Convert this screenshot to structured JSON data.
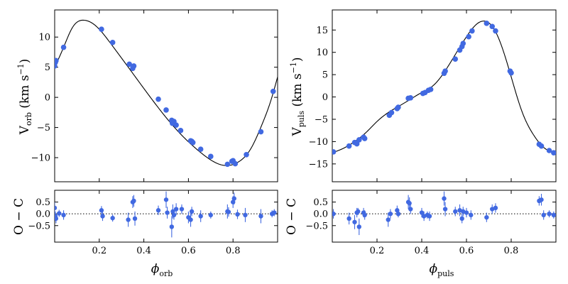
{
  "colors": {
    "points": "#4169E1",
    "model": "#000000"
  },
  "chart_data": [
    {
      "id": "orb_main",
      "type": "scatter",
      "xlim": [
        0,
        1
      ],
      "ylim": [
        -14,
        14.5
      ],
      "xticks": [
        0.2,
        0.4,
        0.6,
        0.8
      ],
      "xtick_labels": [],
      "yticks": [
        -10,
        -5,
        0,
        5,
        10
      ],
      "ytick_labels": [
        "−10",
        "−5",
        "0",
        "5",
        "10"
      ],
      "ylabel_main": "V",
      "ylabel_sub": "orb",
      "ylabel_unit": "(km s",
      "ylabel_exp": "−1",
      "ylabel_close": ")",
      "model_keys": {
        "x": [
          0,
          0.04,
          0.08,
          0.13,
          0.18,
          0.25,
          0.35,
          0.45,
          0.55,
          0.65,
          0.72,
          0.78,
          0.82,
          0.88,
          0.93,
          0.97,
          1.0
        ],
        "y": [
          5,
          8.3,
          11.6,
          12.8,
          12.0,
          9.0,
          4.0,
          -1.0,
          -5.5,
          -9.0,
          -10.8,
          -11.3,
          -10.8,
          -8.5,
          -4.5,
          -0.5,
          3.4
        ]
      },
      "points": {
        "x": [
          0.0,
          0.003,
          0.006,
          0.04,
          0.21,
          0.26,
          0.335,
          0.35,
          0.355,
          0.465,
          0.5,
          0.525,
          0.528,
          0.535,
          0.545,
          0.565,
          0.61,
          0.615,
          0.62,
          0.655,
          0.7,
          0.775,
          0.795,
          0.8,
          0.81,
          0.86,
          0.925,
          0.98
        ],
        "y": [
          5.2,
          5.8,
          6.1,
          8.3,
          11.3,
          9.1,
          5.5,
          4.8,
          5.2,
          -0.3,
          -2.1,
          -3.8,
          -4.3,
          -4.0,
          -4.6,
          -5.5,
          -7.2,
          -7.3,
          -7.5,
          -8.6,
          -9.8,
          -11.1,
          -10.6,
          -10.5,
          -11.0,
          -9.5,
          -5.7,
          1.0
        ]
      }
    },
    {
      "id": "orb_resid",
      "type": "scatter",
      "xlim": [
        0,
        1
      ],
      "ylim": [
        -1.2,
        1.0
      ],
      "xticks": [
        0.2,
        0.4,
        0.6,
        0.8
      ],
      "xtick_labels": [
        "0.2",
        "0.4",
        "0.6",
        "0.8"
      ],
      "yticks": [
        -0.5,
        0.0,
        0.5
      ],
      "ytick_labels": [
        "−0.5",
        "0.0",
        "0.5"
      ],
      "ylabel": "O − C",
      "xlabel_main": "ϕ",
      "xlabel_sub": "orb",
      "points": {
        "x": [
          0.0,
          0.003,
          0.006,
          0.02,
          0.04,
          0.21,
          0.215,
          0.26,
          0.33,
          0.35,
          0.355,
          0.36,
          0.465,
          0.5,
          0.505,
          0.525,
          0.53,
          0.535,
          0.545,
          0.57,
          0.6,
          0.61,
          0.615,
          0.655,
          0.7,
          0.775,
          0.78,
          0.8,
          0.805,
          0.82,
          0.855,
          0.925,
          0.975,
          0.985
        ],
        "y": [
          0.25,
          -0.1,
          -0.2,
          0.02,
          -0.05,
          0.15,
          -0.1,
          -0.18,
          -0.25,
          0.5,
          0.55,
          -0.2,
          0.15,
          0.6,
          0.05,
          -0.55,
          0.1,
          -0.05,
          0.2,
          0.2,
          -0.15,
          -0.25,
          0.1,
          -0.1,
          -0.05,
          0.1,
          0.08,
          0.5,
          0.65,
          -0.02,
          -0.05,
          -0.1,
          0.0,
          0.05
        ],
        "err": [
          0.25,
          0.2,
          0.2,
          0.15,
          0.2,
          0.18,
          0.2,
          0.15,
          0.3,
          0.25,
          0.25,
          0.3,
          0.2,
          0.35,
          0.25,
          0.45,
          0.3,
          0.2,
          0.25,
          0.2,
          0.25,
          0.3,
          0.2,
          0.25,
          0.15,
          0.3,
          0.2,
          0.25,
          0.25,
          0.2,
          0.3,
          0.3,
          0.15,
          0.15
        ]
      }
    },
    {
      "id": "puls_main",
      "type": "scatter",
      "xlim": [
        0,
        1
      ],
      "ylim": [
        -19,
        19.5
      ],
      "xticks": [
        0.2,
        0.4,
        0.6,
        0.8
      ],
      "xtick_labels": [],
      "yticks": [
        -15,
        -10,
        -5,
        0,
        5,
        10,
        15
      ],
      "ytick_labels": [
        "−15",
        "−10",
        "−5",
        "0",
        "5",
        "10",
        "15"
      ],
      "ylabel_main": "V",
      "ylabel_sub": "puls",
      "ylabel_unit": "(km s",
      "ylabel_exp": "−1",
      "ylabel_close": ")",
      "model_keys": {
        "x": [
          0,
          0.05,
          0.1,
          0.15,
          0.2,
          0.25,
          0.3,
          0.35,
          0.4,
          0.45,
          0.5,
          0.55,
          0.6,
          0.65,
          0.68,
          0.72,
          0.76,
          0.8,
          0.85,
          0.9,
          0.95,
          1.0
        ],
        "y": [
          -12.5,
          -11.5,
          -10.0,
          -8.0,
          -5.5,
          -3.5,
          -2.0,
          -0.5,
          1.0,
          2.5,
          5.5,
          9.5,
          13.5,
          16.5,
          17.0,
          15.5,
          11.0,
          4.5,
          -3.5,
          -8.5,
          -11.5,
          -12.5
        ]
      },
      "points": {
        "x": [
          0.005,
          0.075,
          0.1,
          0.11,
          0.12,
          0.14,
          0.145,
          0.255,
          0.265,
          0.29,
          0.295,
          0.34,
          0.35,
          0.405,
          0.415,
          0.43,
          0.44,
          0.5,
          0.505,
          0.55,
          0.57,
          0.58,
          0.585,
          0.61,
          0.625,
          0.69,
          0.715,
          0.73,
          0.795,
          0.8,
          0.925,
          0.935,
          0.97,
          0.99
        ],
        "y": [
          -12.3,
          -11.0,
          -10.2,
          -10.5,
          -9.6,
          -9.0,
          -9.3,
          -4.1,
          -3.5,
          -2.6,
          -2.3,
          -0.3,
          -0.2,
          0.8,
          1.0,
          1.5,
          1.7,
          5.3,
          5.8,
          8.5,
          10.5,
          11.3,
          12.0,
          13.5,
          14.8,
          16.5,
          15.8,
          14.8,
          5.8,
          5.4,
          -10.6,
          -11.0,
          -12.0,
          -12.5
        ]
      }
    },
    {
      "id": "puls_resid",
      "type": "scatter",
      "xlim": [
        0,
        1
      ],
      "ylim": [
        -1.2,
        1.0
      ],
      "xticks": [
        0.2,
        0.4,
        0.6,
        0.8
      ],
      "xtick_labels": [
        "0.2",
        "0.4",
        "0.6",
        "0.8"
      ],
      "yticks": [
        -0.5,
        0.0,
        0.5
      ],
      "ytick_labels": [
        "−0.5",
        "0.0",
        "0.5"
      ],
      "ylabel": "O − C",
      "xlabel_main": "ϕ",
      "xlabel_sub": "puls",
      "points": {
        "x": [
          0.005,
          0.075,
          0.1,
          0.11,
          0.115,
          0.12,
          0.14,
          0.145,
          0.25,
          0.26,
          0.29,
          0.295,
          0.34,
          0.345,
          0.35,
          0.4,
          0.41,
          0.425,
          0.435,
          0.5,
          0.505,
          0.55,
          0.57,
          0.58,
          0.585,
          0.6,
          0.62,
          0.69,
          0.715,
          0.73,
          0.925,
          0.935,
          0.945,
          0.97,
          0.99
        ],
        "y": [
          0.0,
          -0.2,
          -0.35,
          0.05,
          0.1,
          -0.55,
          0.05,
          -0.05,
          -0.25,
          0.0,
          0.15,
          0.0,
          0.5,
          0.45,
          0.2,
          0.05,
          -0.1,
          -0.05,
          -0.1,
          0.65,
          0.2,
          0.1,
          0.15,
          -0.2,
          0.1,
          0.05,
          -0.05,
          -0.15,
          0.2,
          0.25,
          0.55,
          0.6,
          -0.05,
          0.0,
          -0.05
        ],
        "err": [
          0.2,
          0.25,
          0.3,
          0.2,
          0.15,
          0.35,
          0.2,
          0.2,
          0.3,
          0.2,
          0.2,
          0.15,
          0.3,
          0.25,
          0.2,
          0.2,
          0.2,
          0.15,
          0.2,
          0.3,
          0.3,
          0.2,
          0.25,
          0.2,
          0.2,
          0.2,
          0.2,
          0.2,
          0.2,
          0.2,
          0.2,
          0.25,
          0.2,
          0.15,
          0.15
        ]
      }
    }
  ]
}
